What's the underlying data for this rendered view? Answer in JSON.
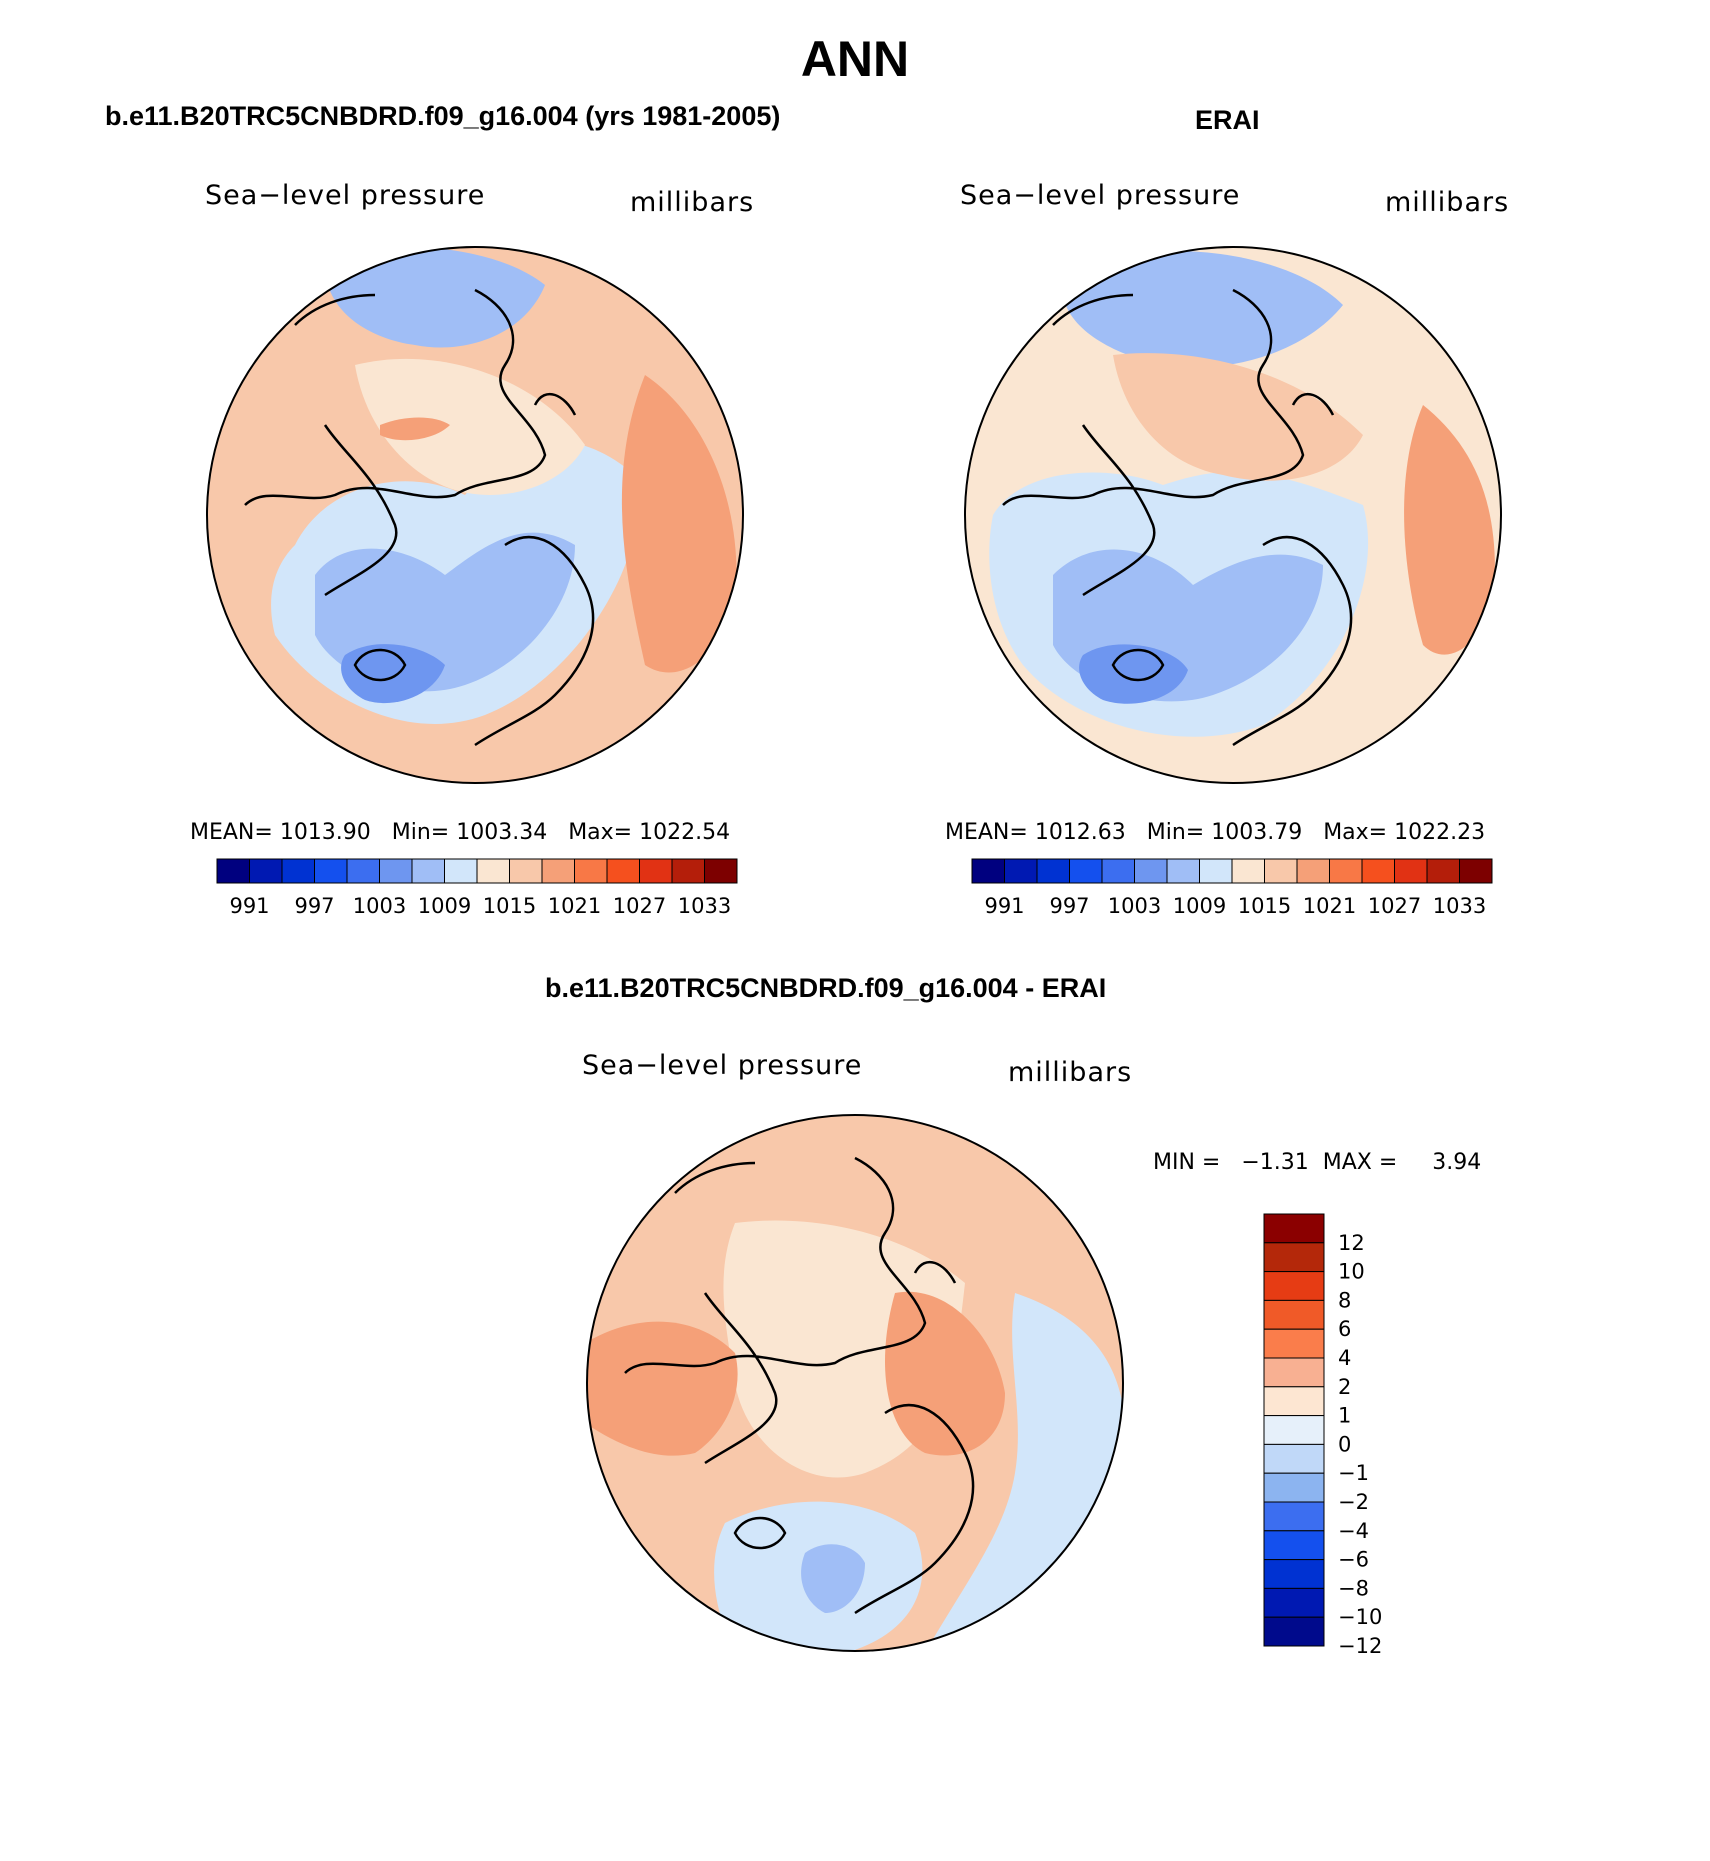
{
  "title": "ANN",
  "panels": {
    "model": {
      "case_title": "b.e11.B20TRC5CNBDRD.f09_g16.004 (yrs 1981-2005)",
      "variable": "Sea−level pressure",
      "units": "millibars",
      "stats": "MEAN= 1013.90   Min= 1003.34   Max= 1022.54"
    },
    "obs": {
      "case_title": "ERAI",
      "variable": "Sea−level pressure",
      "units": "millibars",
      "stats": "MEAN= 1012.63   Min= 1003.79   Max= 1022.23"
    },
    "diff": {
      "case_title": "b.e11.B20TRC5CNBDRD.f09_g16.004 - ERAI",
      "variable": "Sea−level pressure",
      "units": "millibars",
      "stats": "MIN =   −1.31  MAX =     3.94"
    }
  },
  "colorbar_abs": {
    "labels": [
      "991",
      "997",
      "1003",
      "1009",
      "1015",
      "1021",
      "1027",
      "1033"
    ],
    "colors": [
      "#00007f",
      "#0019b2",
      "#0032d2",
      "#1450ee",
      "#3c6ef0",
      "#6e96f0",
      "#a0bef6",
      "#d2e6fa",
      "#fae6d2",
      "#f8c8aa",
      "#f5a078",
      "#f87846",
      "#f5501e",
      "#e13214",
      "#b41e0a",
      "#7d0000"
    ]
  },
  "colorbar_diff": {
    "labels": [
      "12",
      "10",
      "8",
      "6",
      "4",
      "2",
      "1",
      "0",
      "−1",
      "−2",
      "−4",
      "−6",
      "−8",
      "−10",
      "−12"
    ],
    "colors": [
      "#8b0000",
      "#b4280a",
      "#e63c14",
      "#f05a28",
      "#fa7d4b",
      "#f8b092",
      "#fde6d2",
      "#e6f0fa",
      "#c0d8f8",
      "#8cb4f0",
      "#3c6ef0",
      "#1450ee",
      "#0032d2",
      "#0019b2",
      "#000a8c"
    ]
  },
  "map_fields": {
    "model": {
      "background": "#f8c8aa",
      "regions": [
        {
          "name": "n-atlantic-low-outer",
          "color": "#d2e6fa"
        },
        {
          "name": "n-atlantic-low-mid",
          "color": "#a0bef6"
        },
        {
          "name": "icelandic-low",
          "color": "#6e96f0"
        },
        {
          "name": "aleutian-low",
          "color": "#a0bef6"
        },
        {
          "name": "arctic-neutral",
          "color": "#fae6d2"
        },
        {
          "name": "siberian-high",
          "color": "#f5a078"
        },
        {
          "name": "beaufort-high",
          "color": "#f5a078"
        }
      ]
    },
    "obs": {
      "background": "#fae6d2",
      "regions": [
        {
          "name": "n-atlantic-low-outer",
          "color": "#d2e6fa"
        },
        {
          "name": "n-atlantic-low-mid",
          "color": "#a0bef6"
        },
        {
          "name": "icelandic-low",
          "color": "#6e96f0"
        },
        {
          "name": "aleutian-low",
          "color": "#a0bef6"
        },
        {
          "name": "arctic-high",
          "color": "#f8c8aa"
        },
        {
          "name": "siberian-high",
          "color": "#f5a078"
        }
      ]
    },
    "diff": {
      "background": "#f8c8aa",
      "regions": [
        {
          "name": "central-arctic",
          "color": "#fae6d2"
        },
        {
          "name": "atlantic-negative",
          "color": "#d2e6fa"
        },
        {
          "name": "scandinavia-negative",
          "color": "#a0bef6"
        },
        {
          "name": "pacific-negative",
          "color": "#d2e6fa"
        },
        {
          "name": "north-america-positive",
          "color": "#f5a078"
        },
        {
          "name": "eurasia-positive",
          "color": "#f5a078"
        }
      ]
    }
  }
}
